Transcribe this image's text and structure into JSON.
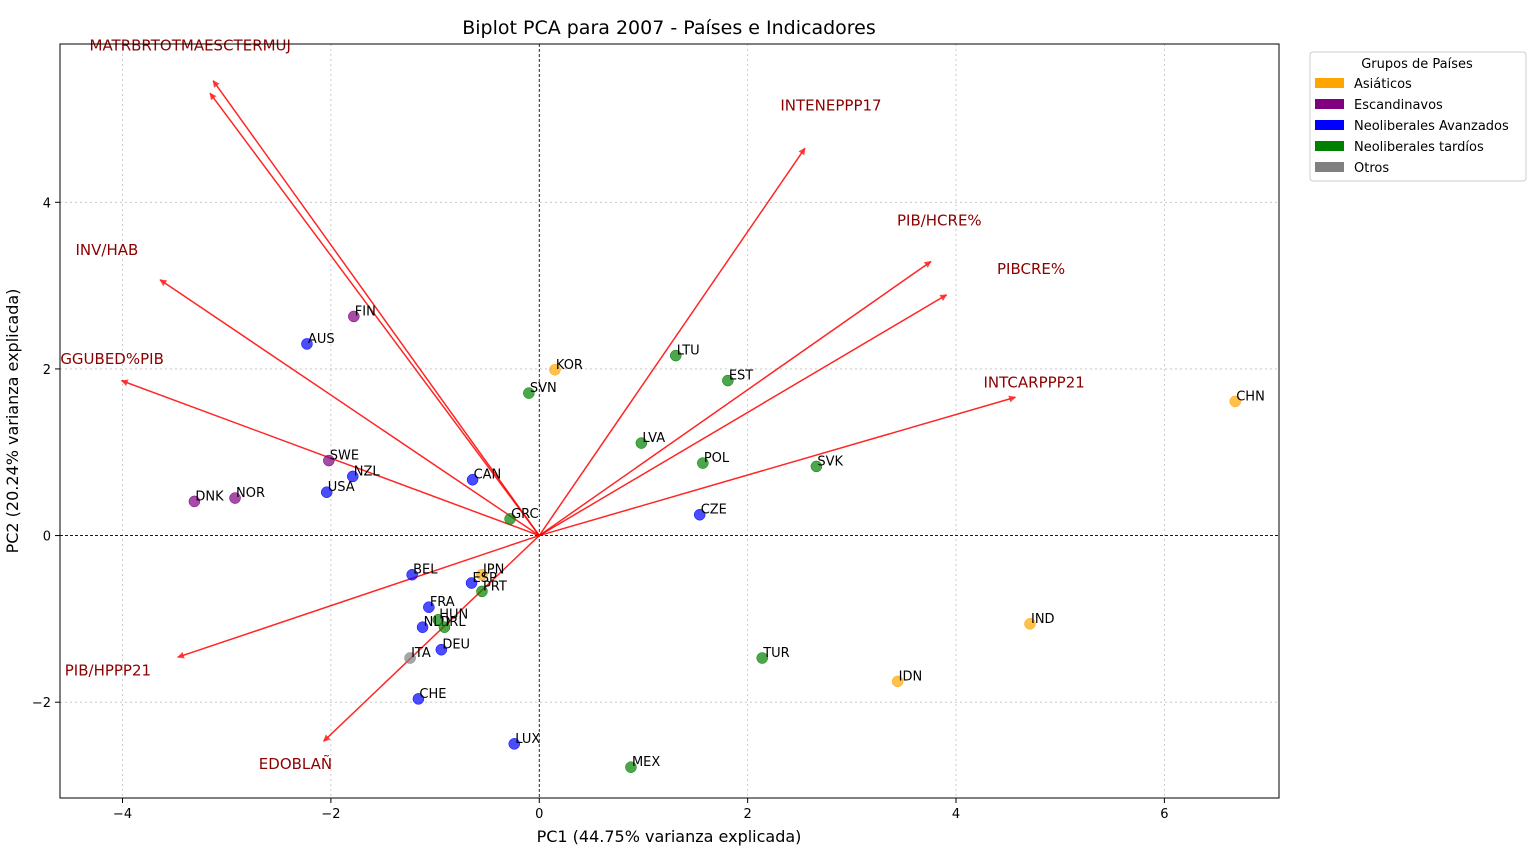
{
  "chart_data": {
    "type": "scatter",
    "title": "Biplot PCA para 2007 - Países e Indicadores",
    "xlabel": "PC1 (44.75% varianza explicada)",
    "ylabel": "PC2 (20.24% varianza explicada)",
    "xlim": [
      -4.6,
      7.1
    ],
    "ylim": [
      -3.15,
      5.9
    ],
    "xticks": [
      -4,
      -2,
      0,
      2,
      4,
      6
    ],
    "yticks": [
      -2,
      0,
      2,
      4
    ],
    "xtick_labels": [
      "−4",
      "−2",
      "0",
      "2",
      "4",
      "6"
    ],
    "ytick_labels": [
      "−2",
      "0",
      "2",
      "4"
    ],
    "grid": true,
    "legend": {
      "title": "Grupos de Países",
      "placement": "outside-top-right",
      "entries": [
        {
          "label": "Asiáticos",
          "color": "#ffa500"
        },
        {
          "label": "Escandinavos",
          "color": "#800080"
        },
        {
          "label": "Neoliberales Avanzados",
          "color": "#0000ff"
        },
        {
          "label": "Neoliberales tardíos",
          "color": "#008000"
        },
        {
          "label": "Otros",
          "color": "#808080"
        }
      ]
    },
    "points": [
      {
        "label": "FIN",
        "x": -1.78,
        "y": 2.63,
        "color": "#800080"
      },
      {
        "label": "AUS",
        "x": -2.23,
        "y": 2.3,
        "color": "#0000ff"
      },
      {
        "label": "KOR",
        "x": 0.15,
        "y": 1.99,
        "color": "#ffa500"
      },
      {
        "label": "SVN",
        "x": -0.1,
        "y": 1.71,
        "color": "#008000"
      },
      {
        "label": "LTU",
        "x": 1.31,
        "y": 2.16,
        "color": "#008000"
      },
      {
        "label": "EST",
        "x": 1.81,
        "y": 1.86,
        "color": "#008000"
      },
      {
        "label": "CHN",
        "x": 6.68,
        "y": 1.61,
        "color": "#ffa500"
      },
      {
        "label": "LVA",
        "x": 0.98,
        "y": 1.11,
        "color": "#008000"
      },
      {
        "label": "POL",
        "x": 1.57,
        "y": 0.87,
        "color": "#008000"
      },
      {
        "label": "SVK",
        "x": 2.66,
        "y": 0.83,
        "color": "#008000"
      },
      {
        "label": "SWE",
        "x": -2.02,
        "y": 0.9,
        "color": "#800080"
      },
      {
        "label": "NZL",
        "x": -1.79,
        "y": 0.71,
        "color": "#0000ff"
      },
      {
        "label": "CAN",
        "x": -0.64,
        "y": 0.67,
        "color": "#0000ff"
      },
      {
        "label": "USA",
        "x": -2.04,
        "y": 0.52,
        "color": "#0000ff"
      },
      {
        "label": "DNK",
        "x": -3.31,
        "y": 0.41,
        "color": "#800080"
      },
      {
        "label": "NOR",
        "x": -2.92,
        "y": 0.45,
        "color": "#800080"
      },
      {
        "label": "GRC",
        "x": -0.28,
        "y": 0.2,
        "color": "#008000"
      },
      {
        "label": "CZE",
        "x": 1.54,
        "y": 0.25,
        "color": "#0000ff"
      },
      {
        "label": "BEL",
        "x": -1.22,
        "y": -0.47,
        "color": "#0000ff"
      },
      {
        "label": "JPN",
        "x": -0.55,
        "y": -0.47,
        "color": "#ffa500"
      },
      {
        "label": "ESP",
        "x": -0.65,
        "y": -0.57,
        "color": "#0000ff"
      },
      {
        "label": "PRT",
        "x": -0.55,
        "y": -0.67,
        "color": "#008000"
      },
      {
        "label": "FRA",
        "x": -1.06,
        "y": -0.86,
        "color": "#0000ff"
      },
      {
        "label": "HUN",
        "x": -0.97,
        "y": -1.01,
        "color": "#008000"
      },
      {
        "label": "NLD",
        "x": -1.12,
        "y": -1.1,
        "color": "#0000ff"
      },
      {
        "label": "IRL",
        "x": -0.91,
        "y": -1.1,
        "color": "#008000"
      },
      {
        "label": "DEU",
        "x": -0.94,
        "y": -1.37,
        "color": "#0000ff"
      },
      {
        "label": "ITA",
        "x": -1.24,
        "y": -1.47,
        "color": "#808080"
      },
      {
        "label": "CHE",
        "x": -1.16,
        "y": -1.96,
        "color": "#0000ff"
      },
      {
        "label": "IND",
        "x": 4.71,
        "y": -1.06,
        "color": "#ffa500"
      },
      {
        "label": "TUR",
        "x": 2.14,
        "y": -1.47,
        "color": "#008000"
      },
      {
        "label": "IDN",
        "x": 3.44,
        "y": -1.75,
        "color": "#ffa500"
      },
      {
        "label": "LUX",
        "x": -0.24,
        "y": -2.5,
        "color": "#0000ff"
      },
      {
        "label": "MEX",
        "x": 0.88,
        "y": -2.78,
        "color": "#008000"
      }
    ],
    "loadings": [
      {
        "label": "MATRBRTOTMAESCTERMUJ",
        "x": -3.13,
        "y": 5.46
      },
      {
        "label": "MATRBRTOTMAESCTERMUJ",
        "x": -3.16,
        "y": 5.31
      },
      {
        "label": "INTENEPPP17",
        "x": 2.55,
        "y": 4.65
      },
      {
        "label": "PIB/HCRE%",
        "x": 3.76,
        "y": 3.29
      },
      {
        "label": "PIBCRE%",
        "x": 3.91,
        "y": 2.89
      },
      {
        "label": "INV/HAB",
        "x": -3.64,
        "y": 3.07
      },
      {
        "label": "GGUBED%PIB",
        "x": -4.01,
        "y": 1.86
      },
      {
        "label": "INTCARPPP21",
        "x": 4.57,
        "y": 1.66
      },
      {
        "label": "PIB/HPPP21",
        "x": -3.47,
        "y": -1.46
      },
      {
        "label": "EDOBLAÑ",
        "x": -2.07,
        "y": -2.47
      }
    ],
    "loading_labels": [
      {
        "text": "MATRBRTOTMAESCTERMUJ",
        "x": -3.35,
        "y": 5.82
      },
      {
        "text": "INTENEPPP17",
        "x": 2.8,
        "y": 5.1
      },
      {
        "text": "PIB/HCRE%",
        "x": 3.84,
        "y": 3.72
      },
      {
        "text": "PIBCRE%",
        "x": 4.72,
        "y": 3.14
      },
      {
        "text": "INV/HAB",
        "x": -4.15,
        "y": 3.37
      },
      {
        "text": "GGUBED%PIB",
        "x": -4.1,
        "y": 2.06
      },
      {
        "text": "INTCARPPP21",
        "x": 4.75,
        "y": 1.78
      },
      {
        "text": "PIB/HPPP21",
        "x": -4.14,
        "y": -1.68
      },
      {
        "text": "EDOBLAÑ",
        "x": -2.34,
        "y": -2.8
      }
    ]
  }
}
